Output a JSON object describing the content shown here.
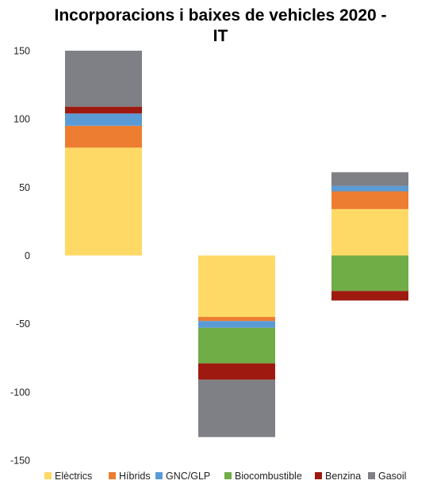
{
  "chart_data": {
    "type": "bar",
    "stacked": true,
    "title_lines": [
      "Incorporacions i baixes  de vehicles 2020 -",
      "IT"
    ],
    "xlabel": "",
    "ylabel": "",
    "ylim": [
      -150,
      150
    ],
    "yticks": [
      150,
      100,
      50,
      0,
      -50,
      -100,
      -150
    ],
    "grid": false,
    "legend_position": "bottom",
    "bars": [
      {
        "segments": [
          {
            "series": 0,
            "value": 79
          },
          {
            "series": 1,
            "value": 16
          },
          {
            "series": 2,
            "value": 9
          },
          {
            "series": 4,
            "value": 5
          },
          {
            "series": 5,
            "value": 41
          }
        ]
      },
      {
        "segments": [
          {
            "series": 0,
            "value": -45
          },
          {
            "series": 1,
            "value": -3
          },
          {
            "series": 2,
            "value": -5
          },
          {
            "series": 3,
            "value": -26
          },
          {
            "series": 4,
            "value": -12
          },
          {
            "series": 5,
            "value": -42
          }
        ]
      },
      {
        "segments": [
          {
            "series": 0,
            "value": 34
          },
          {
            "series": 1,
            "value": 13
          },
          {
            "series": 2,
            "value": 4
          },
          {
            "series": 5,
            "value": 10
          },
          {
            "series": 3,
            "value": -26
          },
          {
            "series": 4,
            "value": -7
          }
        ]
      }
    ],
    "series": [
      {
        "name": "Elèctrics",
        "color": "#FFD966"
      },
      {
        "name": "Híbrids",
        "color": "#ED7D31"
      },
      {
        "name": "GNC/GLP",
        "color": "#5B9BD5"
      },
      {
        "name": "Biocombustible",
        "color": "#70AD47"
      },
      {
        "name": "Benzina",
        "color": "#9E1A10"
      },
      {
        "name": "Gasoil",
        "color": "#7F7F86"
      }
    ]
  }
}
